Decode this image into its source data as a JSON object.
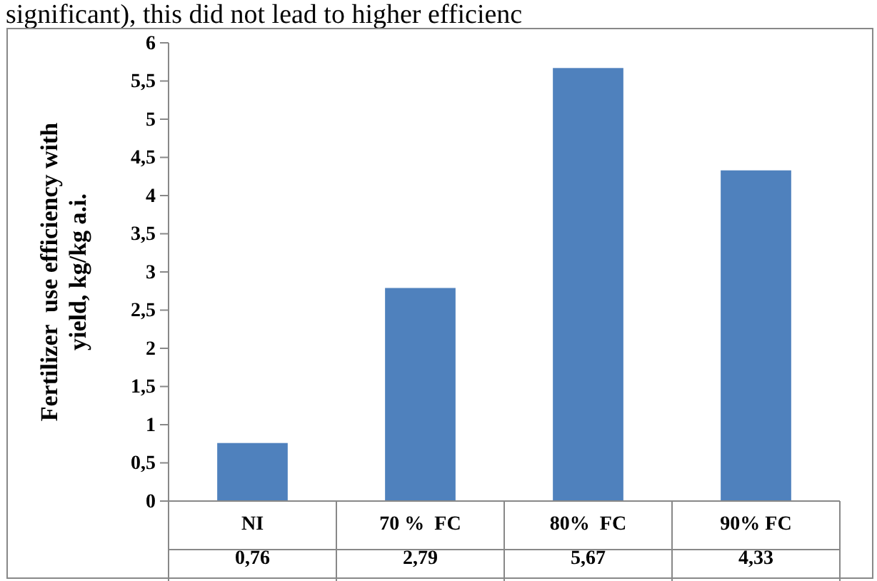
{
  "chart_data": {
    "type": "bar",
    "ylabel": "Fertilizer  use efficiency with yield, kg/kg a.i.",
    "annotations": [
      "significant), this did not lead to higher efficienc"
    ],
    "categories": [
      "NI",
      "70 %  FC",
      "80%  FC",
      "90% FC"
    ],
    "values": [
      0.76,
      2.79,
      5.67,
      4.33
    ],
    "value_labels": [
      "0,76",
      "2,79",
      "5,67",
      "4,33"
    ],
    "color": "#4f81bd",
    "ylim": [
      0,
      6
    ],
    "yticks": [
      0,
      {
        "value": 0.5,
        "label": "0,5"
      },
      1,
      {
        "value": 1.5,
        "label": "1,5"
      },
      2,
      {
        "value": 2.5,
        "label": "2,5"
      },
      3,
      {
        "value": 3.5,
        "label": "3,5"
      },
      4,
      {
        "value": 4.5,
        "label": "4,5"
      },
      5,
      {
        "value": 5.5,
        "label": "5,5"
      },
      6
    ],
    "grid": false
  }
}
